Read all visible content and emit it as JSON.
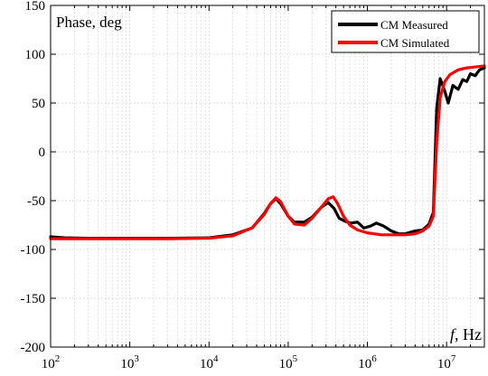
{
  "chart_data": {
    "type": "line",
    "title": "",
    "ylabel": "Phase, deg",
    "xlabel_italic": "f",
    "xlabel_rest": ", Hz",
    "x_scale": "log",
    "xlim": [
      100,
      30000000
    ],
    "ylim": [
      -200,
      150
    ],
    "grid": true,
    "legend_position": "top-right",
    "x_ticks": [
      {
        "value": 100,
        "base": "10",
        "exp": "2"
      },
      {
        "value": 1000,
        "base": "10",
        "exp": "3"
      },
      {
        "value": 10000,
        "base": "10",
        "exp": "4"
      },
      {
        "value": 100000,
        "base": "10",
        "exp": "5"
      },
      {
        "value": 1000000,
        "base": "10",
        "exp": "6"
      },
      {
        "value": 10000000,
        "base": "10",
        "exp": "7"
      }
    ],
    "y_ticks": [
      {
        "value": 150,
        "label": "150"
      },
      {
        "value": 100,
        "label": "100"
      },
      {
        "value": 50,
        "label": "50"
      },
      {
        "value": 0,
        "label": "0"
      },
      {
        "value": -50,
        "label": "-50"
      },
      {
        "value": -100,
        "label": "-100"
      },
      {
        "value": -150,
        "label": "-150"
      },
      {
        "value": -200,
        "label": "-200"
      }
    ],
    "series": [
      {
        "name": "CM Measured",
        "color": "#000000",
        "x": [
          100,
          150,
          300,
          1000,
          3000,
          10000,
          20000,
          35000,
          50000,
          60000,
          70000,
          80000,
          100000,
          120000,
          160000,
          200000,
          260000,
          320000,
          380000,
          440000,
          520000,
          620000,
          750000,
          900000,
          1100000,
          1300000,
          1600000,
          2000000,
          2500000,
          3000000,
          4000000,
          5000000,
          6000000,
          6800000,
          7500000,
          8300000,
          9500000,
          10500000,
          12000000,
          14000000,
          16000000,
          18000000,
          20000000,
          23000000,
          26000000,
          30000000
        ],
        "y": [
          -87,
          -88,
          -88.5,
          -88.5,
          -88.5,
          -88,
          -85,
          -78,
          -63,
          -53,
          -48,
          -53,
          -66,
          -72,
          -72,
          -67,
          -57,
          -52,
          -58,
          -68,
          -71,
          -73,
          -72,
          -78,
          -76,
          -73,
          -76,
          -81,
          -84,
          -84,
          -81,
          -80,
          -74,
          -62,
          45,
          75,
          62,
          50,
          68,
          64,
          74,
          72,
          80,
          78,
          84,
          86
        ]
      },
      {
        "name": "CM Simulated",
        "color": "#ff0000",
        "x": [
          100,
          300,
          1000,
          3000,
          10000,
          20000,
          35000,
          50000,
          60000,
          70000,
          80000,
          100000,
          120000,
          160000,
          200000,
          260000,
          320000,
          370000,
          420000,
          500000,
          600000,
          750000,
          1000000,
          1500000,
          2000000,
          3000000,
          4000000,
          5000000,
          6000000,
          6800000,
          7500000,
          8300000,
          9500000,
          11000000,
          14000000,
          18000000,
          23000000,
          30000000
        ],
        "y": [
          -89,
          -89,
          -89,
          -89,
          -88.5,
          -86,
          -78,
          -64,
          -53,
          -47,
          -51,
          -66,
          -74,
          -75,
          -68,
          -57,
          -48,
          -46,
          -53,
          -66,
          -75,
          -80,
          -83,
          -85,
          -85,
          -85,
          -84,
          -81,
          -76,
          -66,
          10,
          56,
          72,
          79,
          84,
          86,
          87,
          88
        ]
      }
    ]
  }
}
